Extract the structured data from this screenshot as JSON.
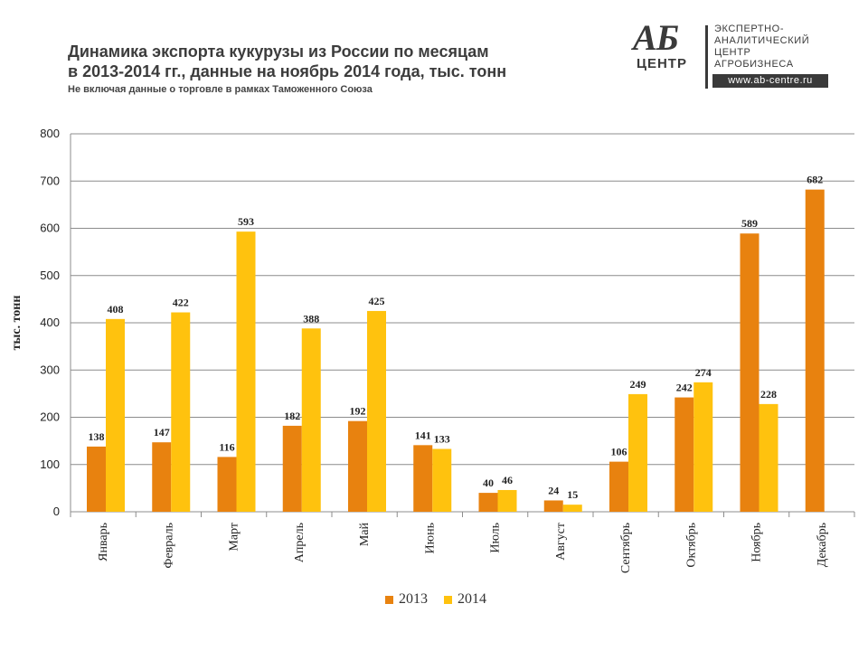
{
  "header": {
    "title_line1": "Динамика экспорта кукурузы из России по месяцам",
    "title_line2": "в 2013-2014 гг., данные на ноябрь 2014 года, тыс. тонн",
    "subtitle": "Не включая данные о торговле в рамках Таможенного Союза"
  },
  "logo": {
    "mark_top": "АБ",
    "mark_bottom": "ЦЕНТР",
    "line1": "ЭКСПЕРТНО-",
    "line2": "АНАЛИТИЧЕСКИЙ",
    "line3": "ЦЕНТР",
    "line4": "АГРОБИЗНЕСА",
    "url": "www.ab-centre.ru"
  },
  "colors": {
    "s2013": "#E8820F",
    "s2014": "#FFC20E",
    "grid": "#8c8c8c",
    "text": "#222222"
  },
  "chart_data": {
    "type": "bar",
    "title": "Динамика экспорта кукурузы из России по месяцам в 2013-2014 гг., данные на ноябрь 2014 года, тыс. тонн",
    "xlabel": "",
    "ylabel": "тыс. тонн",
    "ylim": [
      0,
      800
    ],
    "yticks": [
      0,
      100,
      200,
      300,
      400,
      500,
      600,
      700,
      800
    ],
    "grid": true,
    "legend_position": "bottom",
    "categories": [
      "Январь",
      "Февраль",
      "Март",
      "Апрель",
      "Май",
      "Июнь",
      "Июль",
      "Август",
      "Сентябрь",
      "Октябрь",
      "Ноябрь",
      "Декабрь"
    ],
    "series": [
      {
        "name": "2013",
        "values": [
          138,
          147,
          116,
          182,
          192,
          141,
          40,
          24,
          106,
          242,
          589,
          682
        ]
      },
      {
        "name": "2014",
        "values": [
          408,
          422,
          593,
          388,
          425,
          133,
          46,
          15,
          249,
          274,
          228,
          null
        ]
      }
    ]
  }
}
